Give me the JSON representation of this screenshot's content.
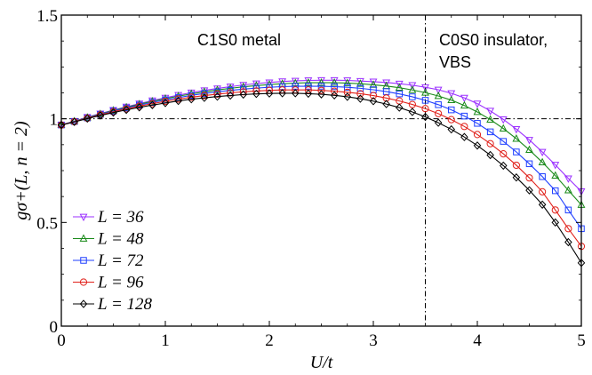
{
  "chart_data": {
    "type": "line",
    "xlabel": "U/t",
    "ylabel": "gσ+(L, n = 2)",
    "xlim": [
      0,
      5
    ],
    "ylim": [
      0,
      1.5
    ],
    "x_ticks": [
      "0",
      "1",
      "2",
      "3",
      "4",
      "5"
    ],
    "y_ticks": [
      "0",
      "0.5",
      "1",
      "1.5"
    ],
    "grid": false,
    "legend_position": "bottom-left",
    "reference_lines": [
      {
        "orientation": "horizontal",
        "value": 1,
        "style": "dash-dot"
      },
      {
        "orientation": "vertical",
        "value": 3.5,
        "style": "dash-dot"
      }
    ],
    "annotations": [
      {
        "id": "metal",
        "lines": [
          "C1S0 metal"
        ]
      },
      {
        "id": "insulator",
        "lines": [
          "C0S0 insulator,",
          "VBS"
        ]
      }
    ],
    "x": [
      0,
      0.125,
      0.25,
      0.375,
      0.5,
      0.625,
      0.75,
      0.875,
      1.0,
      1.125,
      1.25,
      1.375,
      1.5,
      1.625,
      1.75,
      1.875,
      2.0,
      2.125,
      2.25,
      2.375,
      2.5,
      2.625,
      2.75,
      2.875,
      3.0,
      3.125,
      3.25,
      3.375,
      3.5,
      3.625,
      3.75,
      3.875,
      4.0,
      4.125,
      4.25,
      4.375,
      4.5,
      4.625,
      4.75,
      4.875,
      5.0
    ],
    "series": [
      {
        "name": "L = 36",
        "color": "#9b30ff",
        "marker": "triangle-down",
        "values": [
          0.97,
          0.989,
          1.008,
          1.025,
          1.042,
          1.058,
          1.073,
          1.088,
          1.101,
          1.114,
          1.126,
          1.137,
          1.146,
          1.155,
          1.163,
          1.17,
          1.175,
          1.18,
          1.183,
          1.185,
          1.186,
          1.186,
          1.185,
          1.182,
          1.179,
          1.175,
          1.169,
          1.162,
          1.152,
          1.14,
          1.123,
          1.101,
          1.073,
          1.038,
          0.997,
          0.95,
          0.898,
          0.84,
          0.778,
          0.712,
          0.65
        ]
      },
      {
        "name": "L = 48",
        "color": "#1a8a1a",
        "marker": "triangle-up",
        "values": [
          0.97,
          0.988,
          1.006,
          1.023,
          1.04,
          1.055,
          1.07,
          1.084,
          1.097,
          1.109,
          1.12,
          1.13,
          1.139,
          1.147,
          1.154,
          1.16,
          1.165,
          1.169,
          1.172,
          1.174,
          1.174,
          1.174,
          1.172,
          1.169,
          1.164,
          1.158,
          1.15,
          1.139,
          1.126,
          1.11,
          1.09,
          1.064,
          1.033,
          0.996,
          0.953,
          0.904,
          0.85,
          0.79,
          0.726,
          0.655,
          0.585
        ]
      },
      {
        "name": "L = 72",
        "color": "#1f3fff",
        "marker": "square",
        "values": [
          0.97,
          0.987,
          1.004,
          1.021,
          1.037,
          1.052,
          1.066,
          1.079,
          1.091,
          1.102,
          1.113,
          1.122,
          1.13,
          1.137,
          1.143,
          1.148,
          1.152,
          1.155,
          1.157,
          1.157,
          1.157,
          1.155,
          1.152,
          1.147,
          1.14,
          1.131,
          1.12,
          1.106,
          1.089,
          1.068,
          1.043,
          1.013,
          0.978,
          0.937,
          0.891,
          0.84,
          0.783,
          0.721,
          0.653,
          0.56,
          0.47
        ]
      },
      {
        "name": "L = 96",
        "color": "#e0201a",
        "marker": "circle",
        "values": [
          0.97,
          0.986,
          1.003,
          1.019,
          1.034,
          1.048,
          1.061,
          1.073,
          1.084,
          1.095,
          1.104,
          1.112,
          1.119,
          1.125,
          1.13,
          1.134,
          1.137,
          1.139,
          1.139,
          1.139,
          1.137,
          1.133,
          1.128,
          1.121,
          1.112,
          1.1,
          1.086,
          1.069,
          1.049,
          1.025,
          0.996,
          0.963,
          0.924,
          0.88,
          0.831,
          0.776,
          0.715,
          0.648,
          0.56,
          0.47,
          0.385
        ]
      },
      {
        "name": "L = 128",
        "color": "#000000",
        "marker": "diamond",
        "values": [
          0.97,
          0.985,
          1.001,
          1.016,
          1.03,
          1.043,
          1.055,
          1.066,
          1.076,
          1.086,
          1.094,
          1.101,
          1.107,
          1.112,
          1.117,
          1.12,
          1.122,
          1.123,
          1.123,
          1.121,
          1.118,
          1.113,
          1.106,
          1.097,
          1.085,
          1.071,
          1.054,
          1.033,
          1.009,
          0.981,
          0.949,
          0.912,
          0.871,
          0.825,
          0.774,
          0.717,
          0.655,
          0.586,
          0.5,
          0.405,
          0.305
        ]
      }
    ]
  }
}
